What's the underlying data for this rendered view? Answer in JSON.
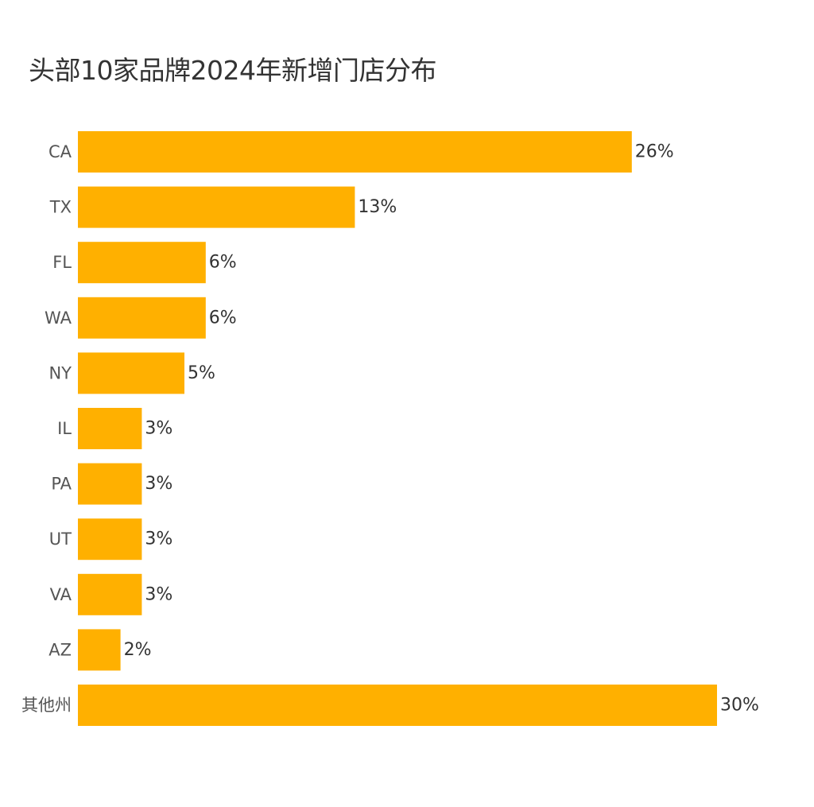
{
  "chart_data": {
    "type": "bar",
    "orientation": "horizontal",
    "title": "头部10家品牌2024年新增门店分布",
    "categories": [
      "CA",
      "TX",
      "FL",
      "WA",
      "NY",
      "IL",
      "PA",
      "UT",
      "VA",
      "AZ",
      "其他州"
    ],
    "values": [
      26,
      13,
      6,
      6,
      5,
      3,
      3,
      3,
      3,
      2,
      30
    ],
    "value_labels": [
      "26%",
      "13%",
      "6%",
      "6%",
      "5%",
      "3%",
      "3%",
      "3%",
      "3%",
      "2%",
      "30%"
    ],
    "bar_color": "#FFB000",
    "xlabel": "",
    "ylabel": "",
    "grid": false,
    "legend": "none"
  }
}
